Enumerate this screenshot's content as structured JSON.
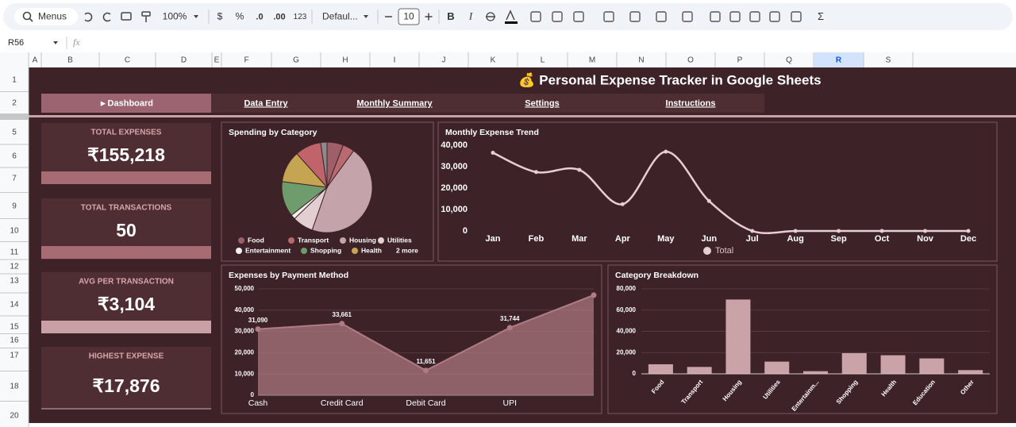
{
  "toolbar": {
    "search": "Menus",
    "zoom": "100%",
    "currency": "$",
    "percent": "%",
    "dec_less": ".0",
    "dec_more": ".00",
    "format": "123",
    "font": "Defaul...",
    "font_size": "10",
    "bold": "B",
    "italic": "I",
    "functions": "Σ"
  },
  "formula_bar": {
    "cell": "R56",
    "fx": "fx"
  },
  "columns": [
    "A",
    "B",
    "C",
    "D",
    "E",
    "F",
    "G",
    "H",
    "I",
    "J",
    "K",
    "L",
    "M",
    "N",
    "O",
    "P",
    "Q",
    "R",
    "S"
  ],
  "rows": [
    "1",
    "2",
    "5",
    "6",
    "7",
    "9",
    "10",
    "11",
    "12",
    "13",
    "14",
    "15",
    "16",
    "17",
    "18",
    "20"
  ],
  "title": "💰 Personal Expense Tracker in Google Sheets",
  "tabs": [
    "▸ Dashboard",
    "Data Entry",
    "Monthly Summary",
    "Settings",
    "Instructions"
  ],
  "kpis": [
    {
      "label": "TOTAL EXPENSES",
      "value": "₹155,218"
    },
    {
      "label": "TOTAL TRANSACTIONS",
      "value": "50"
    },
    {
      "label": "AVG PER TRANSACTION",
      "value": "₹3,104"
    },
    {
      "label": "HIGHEST EXPENSE",
      "value": "₹17,876"
    }
  ],
  "chart_data": [
    {
      "type": "pie",
      "title": "Spending by Category",
      "categories": [
        "Food",
        "Transport",
        "Housing",
        "Utilities",
        "Entertainment",
        "Shopping",
        "Health",
        "Education",
        "Other"
      ],
      "values": [
        9000,
        6500,
        70000,
        11500,
        2500,
        19500,
        17500,
        14500,
        3500
      ],
      "colors": [
        "#9e5f69",
        "#b96a70",
        "#c4a4aa",
        "#e3cfd2",
        "#f5f0f0",
        "#6f9c6c",
        "#c6a552",
        "#c0636b",
        "#8f8a8b"
      ],
      "legend_more": "2 more"
    },
    {
      "type": "line",
      "title": "Monthly Expense Trend",
      "x": [
        "Jan",
        "Feb",
        "Mar",
        "Apr",
        "May",
        "Jun",
        "Jul",
        "Aug",
        "Sep",
        "Oct",
        "Nov",
        "Dec"
      ],
      "series": [
        {
          "name": "Total",
          "color": "#e6cfd2",
          "values": [
            36500,
            27500,
            28500,
            12500,
            37000,
            14000,
            0,
            0,
            0,
            0,
            0,
            0
          ]
        }
      ],
      "ylim": [
        0,
        40000
      ],
      "yticks": [
        0,
        {
          "value": 10000,
          "label": "10,000"
        },
        {
          "value": 20000,
          "label": "20,000"
        },
        {
          "value": 30000,
          "label": "30,000"
        },
        {
          "value": 40000,
          "label": "40,000"
        }
      ],
      "grid": false,
      "legend": "bottom"
    },
    {
      "type": "area",
      "title": "Expenses by Payment Method",
      "categories": [
        "Cash",
        "Credit Card",
        "Debit Card",
        "UPI",
        null
      ],
      "values": [
        31090,
        33661,
        11651,
        31744,
        47072
      ],
      "value_labels": [
        "31,090",
        "33,661",
        "11,651",
        "31,744",
        null
      ],
      "color": "#b07c84",
      "ylim": [
        0,
        50000
      ],
      "yticks": [
        0,
        {
          "value": 10000,
          "label": "10,000"
        },
        {
          "value": 20000,
          "label": "20,000"
        },
        {
          "value": 30000,
          "label": "30,000"
        },
        {
          "value": 40000,
          "label": "40,000"
        },
        {
          "value": 50000,
          "label": "50,000"
        }
      ],
      "grid": true
    },
    {
      "type": "bar",
      "title": "Category Breakdown",
      "categories": [
        "Food",
        "Transport",
        "Housing",
        "Utilities",
        "Entertainm...",
        "Shopping",
        "Health",
        "Education",
        "Other"
      ],
      "values": [
        9000,
        6500,
        70000,
        11500,
        2500,
        19500,
        17500,
        14500,
        3500
      ],
      "color": "#c9a3a8",
      "ylim": [
        0,
        80000
      ],
      "yticks": [
        0,
        {
          "value": 20000,
          "label": "20,000"
        },
        {
          "value": 40000,
          "label": "40,000"
        },
        {
          "value": 60000,
          "label": "60,000"
        },
        {
          "value": 80000,
          "label": "80,000"
        }
      ],
      "grid": true
    }
  ]
}
